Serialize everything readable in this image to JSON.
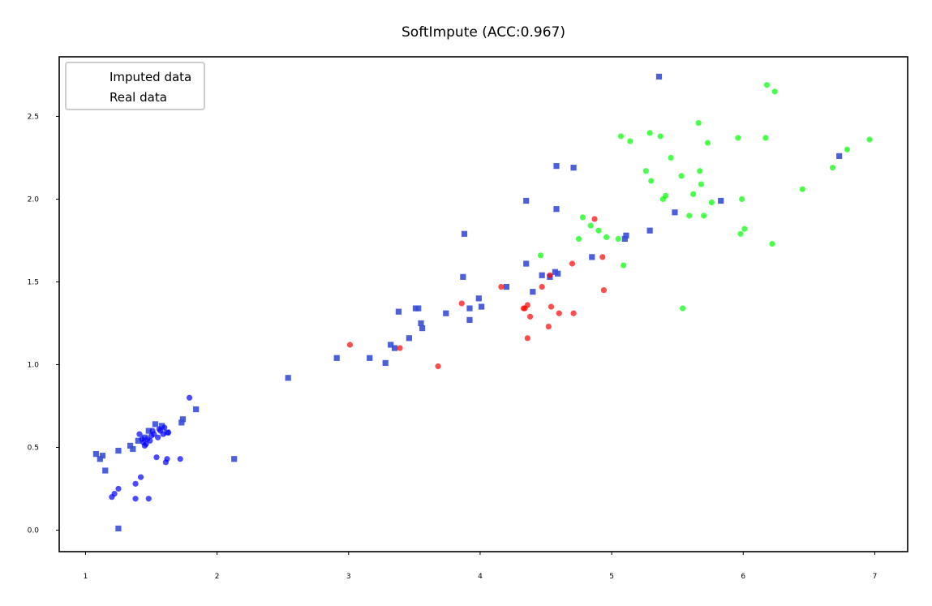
{
  "chart_data": {
    "type": "scatter",
    "title": "SoftImpute (ACC:0.967)",
    "xlabel": "",
    "ylabel": "",
    "xlim": [
      0.8,
      7.25
    ],
    "ylim": [
      -0.13,
      2.86
    ],
    "xticks": [
      1,
      2,
      3,
      4,
      5,
      6,
      7
    ],
    "yticks": [
      0.0,
      0.5,
      1.0,
      1.5,
      2.0,
      2.5
    ],
    "xtick_labels": [
      "1",
      "2",
      "3",
      "4",
      "5",
      "6",
      "7"
    ],
    "ytick_labels": [
      "0.0",
      "0.5",
      "1.0",
      "1.5",
      "2.0",
      "2.5"
    ],
    "grid": false,
    "legend": {
      "position": "top-left",
      "entries": [
        "Imputed data",
        "Real data"
      ]
    },
    "colors": {
      "class0": "#0000ff",
      "class1": "#ff0000",
      "class2": "#00ff00",
      "imputed": "#3a4fd8"
    },
    "series": [
      {
        "marker": "square",
        "role": "imputed",
        "color": "#3a4fd8",
        "x": [
          1.08,
          1.11,
          1.13,
          1.15,
          1.25,
          1.25,
          1.34,
          1.36,
          1.4,
          1.45,
          1.48,
          1.53,
          1.58,
          1.62,
          1.73,
          1.74,
          1.84,
          2.13,
          2.54,
          2.91,
          3.16,
          3.28,
          3.32,
          3.35,
          3.38,
          3.46,
          3.51,
          3.53,
          3.55,
          3.56,
          3.74,
          3.87,
          3.88,
          3.92,
          3.92,
          3.99,
          4.01,
          4.2,
          4.35,
          4.35,
          4.4,
          4.47,
          4.53,
          4.57,
          4.58,
          4.58,
          4.59,
          4.71,
          4.85,
          5.1,
          5.11,
          5.29,
          5.36,
          5.48,
          5.83,
          6.73
        ],
        "y": [
          0.46,
          0.43,
          0.45,
          0.36,
          0.01,
          0.48,
          0.51,
          0.49,
          0.54,
          0.56,
          0.6,
          0.64,
          0.63,
          0.59,
          0.65,
          0.67,
          0.73,
          0.43,
          0.92,
          1.04,
          1.04,
          1.01,
          1.12,
          1.1,
          1.32,
          1.16,
          1.34,
          1.34,
          1.25,
          1.22,
          1.31,
          1.53,
          1.79,
          1.27,
          1.34,
          1.4,
          1.35,
          1.47,
          1.61,
          1.99,
          1.44,
          1.54,
          1.53,
          1.56,
          1.94,
          2.2,
          1.55,
          2.19,
          1.65,
          1.76,
          1.78,
          1.81,
          2.74,
          1.92,
          1.99,
          2.26
        ]
      },
      {
        "marker": "circle",
        "role": "real",
        "name": "class0",
        "color": "#0000ff",
        "x": [
          1.2,
          1.22,
          1.25,
          1.38,
          1.38,
          1.42,
          1.43,
          1.45,
          1.46,
          1.48,
          1.5,
          1.52,
          1.54,
          1.55,
          1.57,
          1.6,
          1.61,
          1.62,
          1.72,
          1.79,
          1.41,
          1.47,
          1.51,
          1.56,
          1.59,
          1.63,
          1.49,
          1.44
        ],
        "y": [
          0.2,
          0.22,
          0.25,
          0.19,
          0.28,
          0.32,
          0.55,
          0.51,
          0.52,
          0.19,
          0.57,
          0.58,
          0.44,
          0.56,
          0.6,
          0.62,
          0.41,
          0.43,
          0.43,
          0.8,
          0.58,
          0.55,
          0.6,
          0.61,
          0.58,
          0.59,
          0.54,
          0.53
        ]
      },
      {
        "marker": "circle",
        "role": "real",
        "name": "class1",
        "color": "#ff0000",
        "x": [
          3.01,
          3.39,
          3.68,
          3.86,
          4.16,
          4.33,
          4.34,
          4.36,
          4.36,
          4.38,
          4.47,
          4.52,
          4.53,
          4.54,
          4.6,
          4.7,
          4.71,
          4.87,
          4.93,
          4.94
        ],
        "y": [
          1.12,
          1.1,
          0.99,
          1.37,
          1.47,
          1.34,
          1.34,
          1.16,
          1.36,
          1.29,
          1.47,
          1.23,
          1.54,
          1.35,
          1.31,
          1.61,
          1.31,
          1.88,
          1.65,
          1.45
        ]
      },
      {
        "marker": "circle",
        "role": "real",
        "name": "class2",
        "color": "#00ff00",
        "x": [
          4.46,
          4.75,
          4.78,
          4.84,
          4.9,
          4.96,
          5.05,
          5.07,
          5.09,
          5.14,
          5.26,
          5.29,
          5.3,
          5.37,
          5.39,
          5.41,
          5.45,
          5.53,
          5.54,
          5.59,
          5.62,
          5.66,
          5.67,
          5.68,
          5.7,
          5.73,
          5.76,
          5.96,
          5.98,
          5.99,
          6.01,
          6.17,
          6.18,
          6.22,
          6.24,
          6.45,
          6.68,
          6.79,
          6.96
        ],
        "y": [
          1.66,
          1.76,
          1.89,
          1.84,
          1.81,
          1.77,
          1.76,
          2.38,
          1.6,
          2.35,
          2.17,
          2.4,
          2.11,
          2.38,
          2.0,
          2.02,
          2.25,
          2.14,
          1.34,
          1.9,
          2.03,
          2.46,
          2.17,
          2.09,
          1.9,
          2.34,
          1.98,
          2.37,
          1.79,
          2.0,
          1.82,
          2.37,
          2.69,
          1.73,
          2.65,
          2.06,
          2.19,
          2.3,
          2.36
        ]
      }
    ]
  }
}
